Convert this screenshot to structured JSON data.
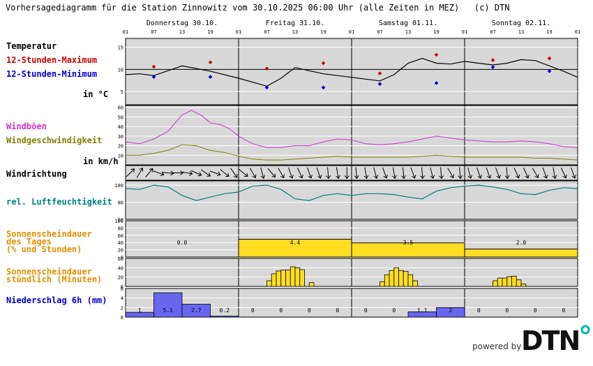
{
  "title": "Vorhersagediagramm für die Station Zinnowitz vom 30.10.2025 06:00 Uhr (alle Zeiten in MEZ)   (c) DTN",
  "labels": {
    "temperatur": "Temperatur",
    "max": "12-Stunden-Maximum",
    "min": "12-Stunden-Minimum",
    "temp_unit": "in °C",
    "windboeen": "Windböen",
    "windgeschw": "Windgeschwindigkeit",
    "wind_unit": "in km/h",
    "windrichtung": "Windrichtung",
    "feuchte": "rel. Luftfeuchtigkeit",
    "sonne_tag": "Sonnenscheindauer\ndes Tages\n(% und Stunden)",
    "sonne_std": "Sonnenscheindauer\nstündlich (Minuten)",
    "niederschlag": "Niederschlag 6h (mm)"
  },
  "powered_by": "powered by",
  "logo_text": "DTN",
  "colors": {
    "panel_bg": "#d8d8d8",
    "temp_line": "#000000",
    "max": "#cc0000",
    "min": "#0000cc",
    "gust": "#cc33cc",
    "wind": "#808000",
    "humidity": "#008080",
    "sun": "#ffdd22",
    "precip": "#6666ee",
    "label_orange": "#e09000",
    "logo_dot": "#00b3a4"
  },
  "chart_data": {
    "type": "line",
    "days": [
      "Donnerstag 30.10.",
      "Freitag 31.10.",
      "Samstag 01.11.",
      "Sonntag 02.11."
    ],
    "hour_ticks": [
      "01",
      "07",
      "13",
      "19",
      "01",
      "07",
      "13",
      "19",
      "01",
      "07",
      "13",
      "19",
      "01",
      "07",
      "13",
      "19",
      "01"
    ],
    "temperature": {
      "yticks": [
        5,
        10,
        15
      ],
      "ylim": [
        2,
        17
      ],
      "points": [
        [
          0,
          8.8
        ],
        [
          3,
          9.0
        ],
        [
          6,
          8.6
        ],
        [
          12,
          10.8
        ],
        [
          18,
          9.6
        ],
        [
          24,
          8.0
        ],
        [
          28,
          6.8
        ],
        [
          30,
          6.2
        ],
        [
          33,
          8.0
        ],
        [
          36,
          10.4
        ],
        [
          42,
          9.0
        ],
        [
          48,
          8.2
        ],
        [
          51,
          7.8
        ],
        [
          54,
          7.4
        ],
        [
          57,
          8.8
        ],
        [
          60,
          11.4
        ],
        [
          63,
          12.5
        ],
        [
          66,
          11.4
        ],
        [
          69,
          11.2
        ],
        [
          72,
          11.8
        ],
        [
          75,
          11.4
        ],
        [
          78,
          11.0
        ],
        [
          81,
          11.4
        ],
        [
          84,
          12.2
        ],
        [
          87,
          12.0
        ],
        [
          90,
          10.8
        ],
        [
          93,
          9.6
        ],
        [
          96,
          8.2
        ]
      ],
      "max_markers": [
        [
          6,
          10.6
        ],
        [
          18,
          11.6
        ],
        [
          30,
          10.2
        ],
        [
          42,
          11.4
        ],
        [
          54,
          9.1
        ],
        [
          66,
          13.3
        ],
        [
          78,
          12.1
        ],
        [
          90,
          12.5
        ]
      ],
      "min_markers": [
        [
          6,
          8.3
        ],
        [
          18,
          8.3
        ],
        [
          30,
          5.9
        ],
        [
          42,
          5.9
        ],
        [
          54,
          6.7
        ],
        [
          66,
          6.9
        ],
        [
          78,
          10.5
        ],
        [
          90,
          9.6
        ]
      ]
    },
    "wind": {
      "yticks": [
        10,
        20,
        30,
        40,
        50,
        60
      ],
      "ylim": [
        0,
        62
      ],
      "gusts": [
        [
          0,
          24
        ],
        [
          3,
          22
        ],
        [
          6,
          27
        ],
        [
          9,
          35
        ],
        [
          12,
          52
        ],
        [
          14,
          57
        ],
        [
          16,
          52
        ],
        [
          18,
          44
        ],
        [
          20,
          42
        ],
        [
          22,
          38
        ],
        [
          24,
          30
        ],
        [
          27,
          22
        ],
        [
          30,
          18
        ],
        [
          33,
          18
        ],
        [
          36,
          20
        ],
        [
          39,
          20
        ],
        [
          42,
          24
        ],
        [
          45,
          27
        ],
        [
          48,
          26
        ],
        [
          51,
          22
        ],
        [
          54,
          21
        ],
        [
          57,
          22
        ],
        [
          60,
          24
        ],
        [
          63,
          27
        ],
        [
          66,
          30
        ],
        [
          69,
          28
        ],
        [
          72,
          26
        ],
        [
          75,
          25
        ],
        [
          78,
          24
        ],
        [
          81,
          24
        ],
        [
          84,
          25
        ],
        [
          87,
          24
        ],
        [
          90,
          22
        ],
        [
          93,
          19
        ],
        [
          96,
          18
        ]
      ],
      "speed": [
        [
          0,
          10
        ],
        [
          3,
          10
        ],
        [
          6,
          12
        ],
        [
          9,
          15
        ],
        [
          12,
          21
        ],
        [
          15,
          20
        ],
        [
          18,
          15
        ],
        [
          21,
          13
        ],
        [
          24,
          9
        ],
        [
          27,
          6
        ],
        [
          30,
          5
        ],
        [
          33,
          5
        ],
        [
          36,
          6
        ],
        [
          39,
          7
        ],
        [
          42,
          8
        ],
        [
          45,
          9
        ],
        [
          48,
          8
        ],
        [
          51,
          8
        ],
        [
          54,
          8
        ],
        [
          57,
          8
        ],
        [
          60,
          8
        ],
        [
          63,
          9
        ],
        [
          66,
          10
        ],
        [
          69,
          9
        ],
        [
          72,
          8
        ],
        [
          75,
          8
        ],
        [
          78,
          8
        ],
        [
          81,
          8
        ],
        [
          84,
          8
        ],
        [
          87,
          7
        ],
        [
          90,
          7
        ],
        [
          93,
          6
        ],
        [
          96,
          5
        ]
      ]
    },
    "wind_direction_deg": [
      45,
      30,
      40,
      110,
      95,
      90,
      100,
      115,
      125,
      110,
      130,
      145,
      130,
      150,
      165,
      140,
      150,
      160,
      155,
      160,
      160,
      175,
      170,
      180,
      175,
      170,
      165,
      160,
      170,
      175,
      160,
      175,
      165,
      175,
      150,
      175,
      165,
      160,
      160,
      160,
      175,
      155,
      155,
      150,
      160,
      170,
      155,
      160
    ],
    "humidity": {
      "yticks": [
        60,
        80,
        100
      ],
      "ylim": [
        60,
        105
      ],
      "points": [
        [
          0,
          96
        ],
        [
          3,
          95
        ],
        [
          6,
          100
        ],
        [
          9,
          98
        ],
        [
          12,
          88
        ],
        [
          15,
          82
        ],
        [
          18,
          86
        ],
        [
          21,
          90
        ],
        [
          24,
          92
        ],
        [
          27,
          99
        ],
        [
          30,
          100
        ],
        [
          33,
          95
        ],
        [
          36,
          84
        ],
        [
          39,
          82
        ],
        [
          42,
          88
        ],
        [
          45,
          90
        ],
        [
          48,
          88
        ],
        [
          51,
          90
        ],
        [
          54,
          90
        ],
        [
          57,
          89
        ],
        [
          60,
          86
        ],
        [
          63,
          84
        ],
        [
          66,
          93
        ],
        [
          69,
          97
        ],
        [
          72,
          99
        ],
        [
          75,
          100
        ],
        [
          78,
          98
        ],
        [
          81,
          95
        ],
        [
          84,
          90
        ],
        [
          87,
          89
        ],
        [
          90,
          94
        ],
        [
          93,
          97
        ],
        [
          96,
          96
        ]
      ]
    },
    "sunshine_daily": {
      "yticks": [
        0,
        20,
        40,
        60,
        80,
        100
      ],
      "ylim": [
        0,
        100
      ],
      "percent": [
        0,
        49,
        39,
        22
      ],
      "hours_labels": [
        "0.0",
        "4.4",
        "3.5",
        "2.0"
      ]
    },
    "sunshine_hourly": {
      "yticks": [
        0,
        20,
        40,
        60
      ],
      "ylim": [
        0,
        60
      ],
      "bars": [
        [
          30,
          12
        ],
        [
          31,
          27
        ],
        [
          32,
          33
        ],
        [
          33,
          35
        ],
        [
          34,
          35
        ],
        [
          35,
          42
        ],
        [
          36,
          40
        ],
        [
          37,
          36
        ],
        [
          39,
          8
        ],
        [
          54,
          10
        ],
        [
          55,
          25
        ],
        [
          56,
          34
        ],
        [
          57,
          40
        ],
        [
          58,
          34
        ],
        [
          59,
          32
        ],
        [
          60,
          25
        ],
        [
          61,
          12
        ],
        [
          78,
          12
        ],
        [
          79,
          18
        ],
        [
          80,
          18
        ],
        [
          81,
          21
        ],
        [
          82,
          22
        ],
        [
          83,
          14
        ],
        [
          84,
          5
        ]
      ]
    },
    "precip_6h": {
      "yticks": [
        0,
        2,
        4,
        6
      ],
      "ylim": [
        0,
        6
      ],
      "values": [
        1,
        5.1,
        2.7,
        0.2,
        0,
        0,
        0,
        0,
        0,
        0,
        1.1,
        2,
        0,
        0,
        0,
        0
      ],
      "labels": [
        "1",
        "5.1",
        "2.7",
        "0.2",
        "0",
        "0",
        "0",
        "0",
        "0",
        "0",
        "1.1",
        "2",
        "0",
        "0",
        "0",
        "0"
      ]
    }
  }
}
